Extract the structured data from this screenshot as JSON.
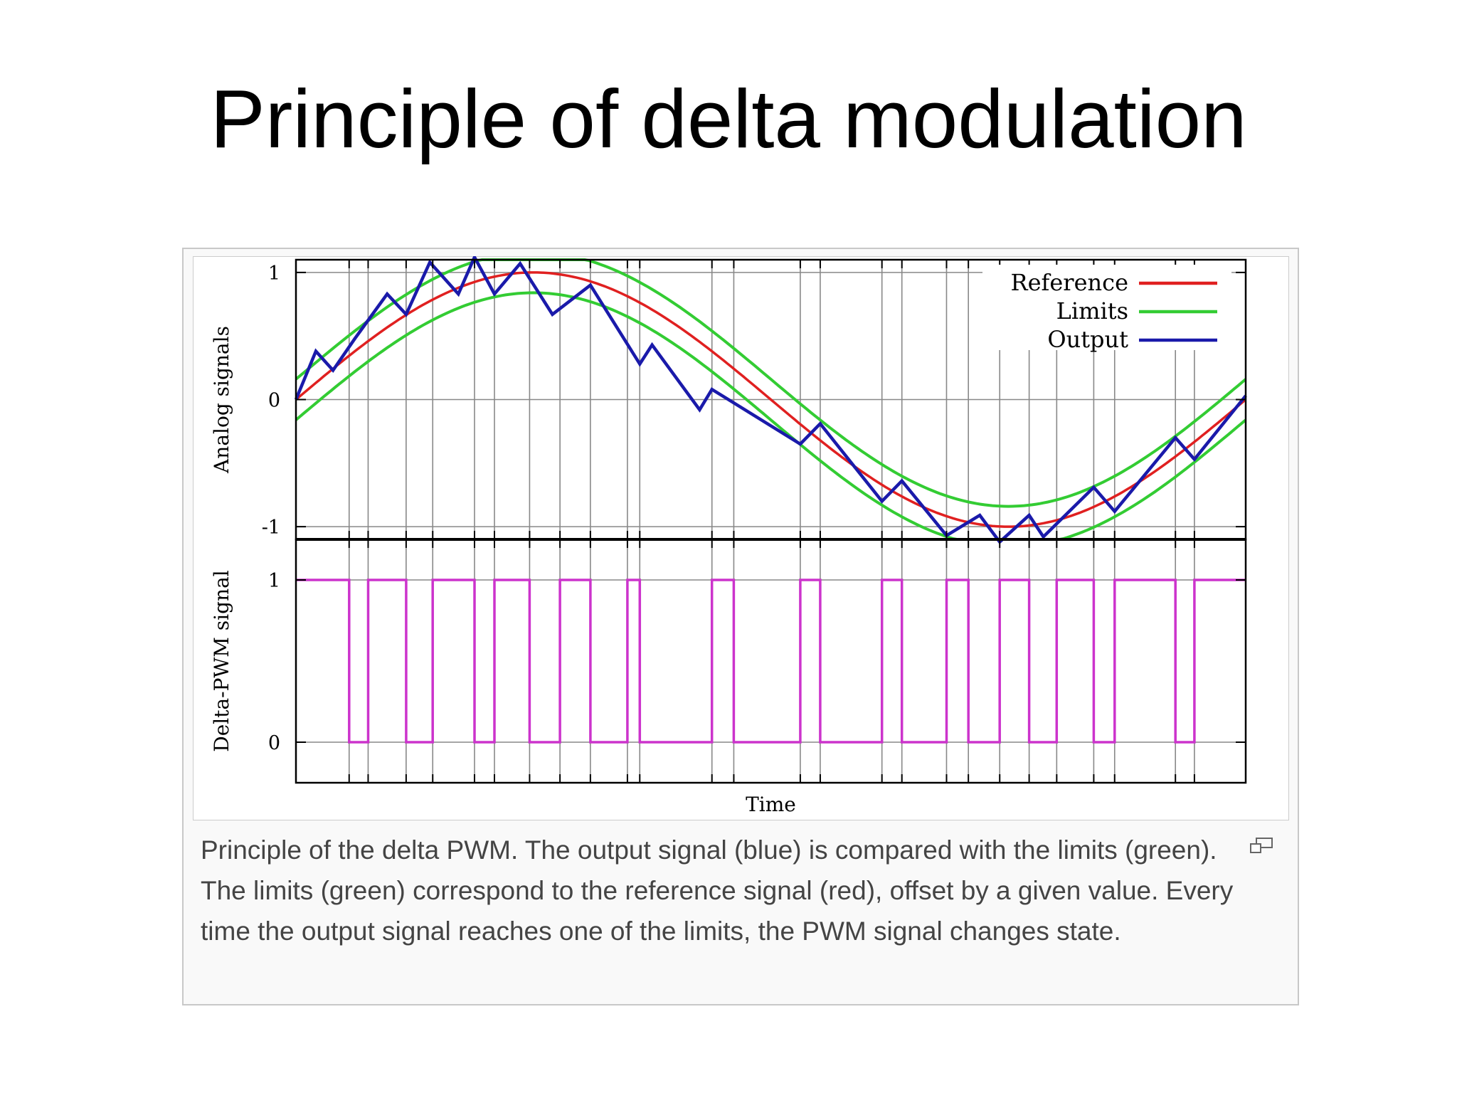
{
  "slide": {
    "title": "Principle of delta modulation"
  },
  "caption": {
    "text": "Principle of the delta PWM. The output signal (blue) is compared with the limits (green). The limits (green) correspond to the reference signal (red), offset by a given value. Every time the output signal reaches one of the limits, the PWM signal changes state.",
    "enlarge_icon": "enlarge-icon"
  },
  "colors": {
    "reference": "#e02020",
    "limits": "#33cc33",
    "output": "#1a1aaa",
    "pwm": "#cc33cc",
    "grid": "#888888",
    "frame": "#000000"
  },
  "chart_data": [
    {
      "type": "line",
      "ylabel": "Analog signals",
      "xlabel": "",
      "ylim": [
        -1.1,
        1.1
      ],
      "yticks": [
        "1",
        "0",
        "-1"
      ],
      "ytick_values": [
        1,
        0,
        -1
      ],
      "grid": true,
      "legend_position": "top-right",
      "limit_offset": 0.16,
      "series": [
        {
          "name": "Reference",
          "kind": "sine",
          "x_range": [
            0,
            1
          ],
          "amplitude": 1
        },
        {
          "name": "Limits",
          "kind": "sine-offset",
          "x_range": [
            0,
            1
          ],
          "offset": 0.16
        },
        {
          "name": "Output",
          "kind": "polyline",
          "x": [
            0,
            0.021,
            0.039,
            0.062,
            0.096,
            0.116,
            0.141,
            0.171,
            0.188,
            0.209,
            0.236,
            0.27,
            0.31,
            0.362,
            0.375,
            0.425,
            0.438,
            0.531,
            0.552,
            0.617,
            0.638,
            0.685,
            0.72,
            0.741,
            0.772,
            0.787,
            0.84,
            0.862,
            0.926,
            0.946,
            1.0
          ],
          "y": [
            0,
            0.38,
            0.23,
            0.48,
            0.83,
            0.67,
            1.08,
            0.83,
            1.12,
            0.83,
            1.07,
            0.67,
            0.9,
            0.28,
            0.43,
            -0.08,
            0.08,
            -0.35,
            -0.19,
            -0.8,
            -0.64,
            -1.07,
            -0.91,
            -1.12,
            -0.91,
            -1.08,
            -0.69,
            -0.88,
            -0.3,
            -0.47,
            0.03
          ]
        }
      ]
    },
    {
      "type": "line",
      "ylabel": "Delta-PWM signal",
      "xlabel": "Time",
      "ylim": [
        -0.25,
        1.25
      ],
      "yticks": [
        "1",
        "0"
      ],
      "ytick_values": [
        1,
        0
      ],
      "grid": true,
      "series": [
        {
          "name": "",
          "kind": "step",
          "transitions": [
            0.056,
            0.076,
            0.116,
            0.144,
            0.188,
            0.209,
            0.246,
            0.278,
            0.31,
            0.349,
            0.362,
            0.438,
            0.461,
            0.531,
            0.552,
            0.617,
            0.638,
            0.685,
            0.708,
            0.741,
            0.772,
            0.801,
            0.84,
            0.862,
            0.926,
            0.946
          ],
          "y_after_transition": [
            0,
            1,
            0,
            1,
            0,
            1,
            0,
            1,
            0,
            1,
            0,
            1,
            0,
            1,
            0,
            1,
            0,
            1,
            0,
            1,
            0,
            1,
            0,
            1,
            0,
            1
          ],
          "y_start": 1
        }
      ]
    }
  ]
}
